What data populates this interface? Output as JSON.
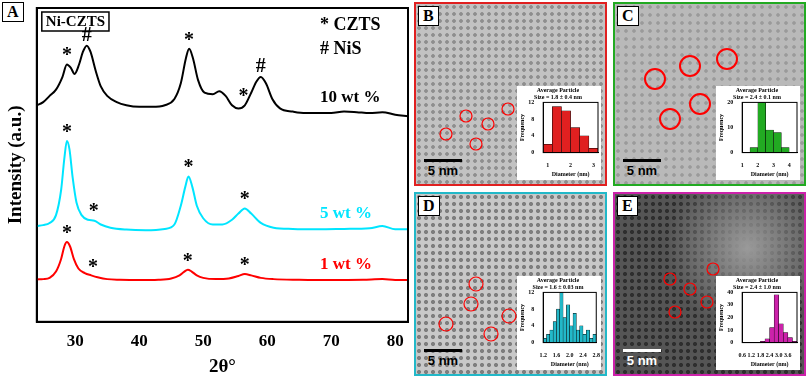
{
  "chart_data": [
    {
      "type": "line",
      "panel": "A",
      "title": "Ni-CZTS",
      "x_label": "2θ°",
      "y_label": "Intensity (a.u.)",
      "xlim": [
        24,
        82
      ],
      "xticks": [
        30,
        40,
        50,
        60,
        70,
        80
      ],
      "ylim": [
        0,
        100
      ],
      "tick_labels": "x",
      "grid": false,
      "symbols": [
        {
          "symbol": "*",
          "name": "CZTS"
        },
        {
          "symbol": "#",
          "name": "NiS"
        }
      ],
      "markers": [
        {
          "symbol": "*",
          "x": 28.7,
          "y": 26.5
        },
        {
          "symbol": "*",
          "x": 32.8,
          "y": 15.5
        },
        {
          "symbol": "*",
          "x": 47.6,
          "y": 17.6
        },
        {
          "symbol": "*",
          "x": 56.5,
          "y": 16.2
        },
        {
          "symbol": "*",
          "x": 28.7,
          "y": 58.6
        },
        {
          "symbol": "*",
          "x": 32.9,
          "y": 33.3
        },
        {
          "symbol": "*",
          "x": 47.7,
          "y": 47.3
        },
        {
          "symbol": "*",
          "x": 56.5,
          "y": 37.1
        },
        {
          "symbol": "*",
          "x": 28.7,
          "y": 83
        },
        {
          "symbol": "#",
          "x": 31.8,
          "y": 89.5
        },
        {
          "symbol": "*",
          "x": 47.8,
          "y": 88
        },
        {
          "symbol": "*",
          "x": 56.3,
          "y": 70
        },
        {
          "symbol": "#",
          "x": 59,
          "y": 79.5
        }
      ],
      "series": [
        {
          "name": "10 wt %",
          "color": "#000000",
          "x": [
            24,
            25,
            26,
            27,
            28,
            28.7,
            29.3,
            29.9,
            30.6,
            31.2,
            31.8,
            32.4,
            33.2,
            34,
            35,
            36.5,
            38,
            40,
            42,
            44,
            45.5,
            46.5,
            47.3,
            47.8,
            48.4,
            49.2,
            50.2,
            51.5,
            52.5,
            53.5,
            54.5,
            55.5,
            56.5,
            57.5,
            58.3,
            59,
            59.8,
            60.8,
            62,
            64,
            66,
            68,
            70,
            72,
            74,
            76,
            78,
            80,
            82
          ],
          "values": [
            69,
            70,
            72,
            74,
            78,
            82,
            81,
            79,
            82,
            86,
            88,
            86,
            80,
            75,
            72,
            70,
            69,
            68.5,
            68.5,
            69,
            71,
            76,
            84,
            87,
            84,
            77,
            73,
            72.5,
            73.5,
            72,
            69,
            68,
            69,
            73,
            76.5,
            78,
            76,
            71,
            68,
            67,
            66.5,
            66.5,
            66.5,
            67,
            66.8,
            66.5,
            66.8,
            66,
            65.5
          ]
        },
        {
          "name": "5 wt %",
          "color": "#00e5ff",
          "x": [
            24,
            25,
            26,
            27,
            27.8,
            28.3,
            28.7,
            29.1,
            29.6,
            30.2,
            31,
            32,
            33,
            34,
            35.5,
            38,
            41,
            44,
            45.5,
            46.5,
            47.2,
            47.7,
            48.3,
            49,
            50,
            51.5,
            53,
            54.5,
            55.5,
            56.5,
            57.5,
            59,
            61,
            64,
            68,
            72,
            76,
            78,
            80,
            82
          ],
          "values": [
            30.5,
            30.8,
            31.5,
            34,
            42,
            52,
            57.6,
            55,
            46,
            38,
            34,
            32.5,
            32.2,
            31,
            30,
            29.4,
            29.2,
            29.6,
            31,
            37,
            43,
            46.3,
            43,
            37,
            33,
            31,
            31,
            32.5,
            34.5,
            36.1,
            34.5,
            31.5,
            30,
            29.6,
            29.5,
            29.6,
            29.8,
            30.5,
            29.5,
            29.5
          ]
        },
        {
          "name": "1 wt %",
          "color": "#ff0000",
          "x": [
            24,
            25,
            26,
            27,
            27.8,
            28.3,
            28.7,
            29.2,
            29.8,
            30.5,
            31.5,
            32.5,
            33.5,
            35,
            37,
            40,
            43,
            45,
            46.3,
            47,
            47.6,
            48.2,
            49,
            50,
            52,
            54,
            55.5,
            56.5,
            57.5,
            59,
            61,
            65,
            70,
            75,
            78,
            80,
            82
          ],
          "values": [
            13.5,
            13.6,
            14,
            16,
            20,
            24,
            25.4,
            24,
            20,
            17,
            15.5,
            14.8,
            14.2,
            13.6,
            13.4,
            13.3,
            13.4,
            13.8,
            14.8,
            15.9,
            16.6,
            16,
            14.8,
            14,
            13.6,
            13.8,
            14.6,
            15.2,
            14.8,
            14,
            13.6,
            13.4,
            13.3,
            13.4,
            13.6,
            13.3,
            13.3
          ]
        }
      ]
    },
    {
      "type": "histogram",
      "panel": "B",
      "scale_bar": "5 nm",
      "color": "#e02020",
      "title": [
        "Average Particle",
        "Size = 1.8 ± 0.4 nm"
      ],
      "x_label": "Diameter (nm)",
      "y_label": "Frequency",
      "bins": [
        0.8,
        1.2,
        1.6,
        2.0,
        2.4,
        2.8,
        3.2
      ],
      "counts": [
        2,
        11,
        10,
        6,
        4,
        1
      ],
      "xlim": [
        0.8,
        3.2
      ],
      "xticks": [
        1,
        2,
        3
      ],
      "ylim": [
        0,
        12
      ],
      "yticks": [
        0,
        4,
        8,
        12
      ],
      "grid": false
    },
    {
      "type": "histogram",
      "panel": "C",
      "scale_bar": "5 nm",
      "color": "#22aa22",
      "title": [
        "Average Particle",
        "Size = 2.4 ± 0.1 nm"
      ],
      "x_label": "Diameter (nm)",
      "y_label": "Frequency",
      "bins": [
        1.5,
        2.0,
        2.5,
        3.0,
        3.5,
        4.0
      ],
      "counts": [
        2,
        20,
        9,
        8,
        2
      ],
      "xlim": [
        1,
        4.5
      ],
      "xticks": [
        1,
        2,
        3,
        4
      ],
      "ylim": [
        0,
        20
      ],
      "yticks": [
        0,
        10,
        20
      ],
      "grid": false
    },
    {
      "type": "histogram",
      "panel": "D",
      "scale_bar": "5 nm",
      "color": "#22b8c8",
      "title": [
        "Average Particle",
        "Size = 1.6 ± 0.03 nm"
      ],
      "x_label": "Diameter (nm)",
      "y_label": "Frequency",
      "bins": [
        1.2,
        1.3,
        1.4,
        1.5,
        1.6,
        1.7,
        1.8,
        1.9,
        2.0,
        2.1,
        2.2,
        2.3,
        2.4,
        2.5,
        2.6,
        2.7,
        2.8
      ],
      "counts": [
        1,
        2,
        3,
        5,
        8,
        12,
        6,
        9,
        4,
        7,
        3,
        4,
        2,
        3,
        1,
        2
      ],
      "xlim": [
        1.2,
        2.8
      ],
      "xticks": [
        1.2,
        1.6,
        {
          "value": 2,
          "label": "2.0"
        },
        2.4,
        2.8
      ],
      "ylim": [
        0,
        12
      ],
      "yticks": [
        0,
        4,
        8,
        12
      ],
      "grid": false
    },
    {
      "type": "histogram",
      "panel": "E",
      "scale_bar": "5 nm",
      "color": "#cc22aa",
      "title": [
        "Average Particle",
        "Size = 2.4 ± 1.0 nm"
      ],
      "x_label": "Diameter (nm)",
      "y_label": "Frequency",
      "bins": [
        0.6,
        0.9,
        1.2,
        1.5,
        1.8,
        2.1,
        2.4,
        2.7,
        3.0,
        3.3,
        3.6,
        3.9,
        4.2
      ],
      "counts": [
        0,
        0,
        0,
        0,
        1,
        3,
        12,
        38,
        15,
        8,
        4,
        1
      ],
      "xlim": [
        0.6,
        4.2
      ],
      "xticks": [
        0.6,
        1.2,
        1.8,
        2.4,
        {
          "value": 3,
          "label": "3.0"
        },
        3.6
      ],
      "ylim": [
        0,
        40
      ],
      "yticks": [
        0,
        10,
        20,
        30,
        40
      ],
      "grid": false
    }
  ]
}
